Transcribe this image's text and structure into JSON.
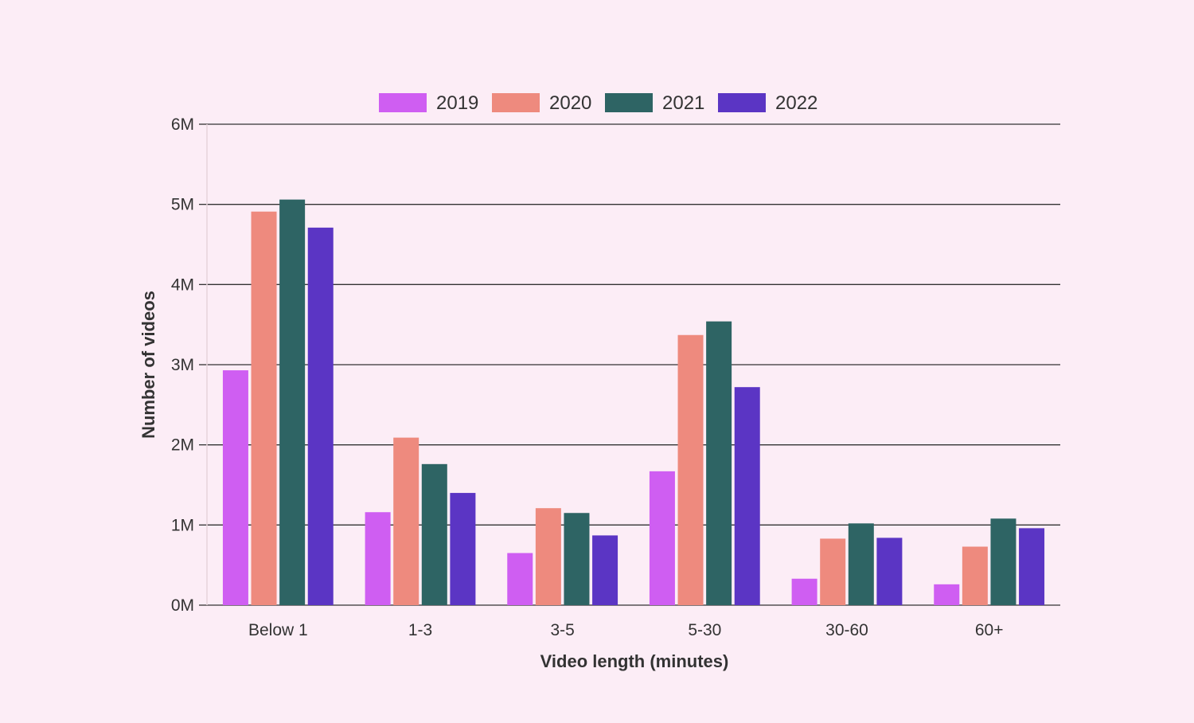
{
  "chart_data": {
    "type": "bar",
    "title": "",
    "xlabel": "Video length (minutes)",
    "ylabel": "Number of videos",
    "categories": [
      "Below 1",
      "1-3",
      "3-5",
      "5-30",
      "30-60",
      "60+"
    ],
    "series": [
      {
        "name": "2019",
        "color": "#cf5ef2",
        "values": [
          2.93,
          1.16,
          0.65,
          1.67,
          0.33,
          0.26
        ]
      },
      {
        "name": "2020",
        "color": "#ee8a7e",
        "values": [
          4.91,
          2.09,
          1.21,
          3.37,
          0.83,
          0.73
        ]
      },
      {
        "name": "2021",
        "color": "#2e6464",
        "values": [
          5.06,
          1.76,
          1.15,
          3.54,
          1.02,
          1.08
        ]
      },
      {
        "name": "2022",
        "color": "#5b35c4",
        "values": [
          4.71,
          1.4,
          0.87,
          2.72,
          0.84,
          0.96
        ]
      }
    ],
    "ylim": [
      0,
      6
    ],
    "yticks": [
      0,
      1,
      2,
      3,
      4,
      5,
      6
    ],
    "ytick_labels": [
      "0M",
      "1M",
      "2M",
      "3M",
      "4M",
      "5M",
      "6M"
    ],
    "grid": true,
    "legend_position": "top"
  }
}
